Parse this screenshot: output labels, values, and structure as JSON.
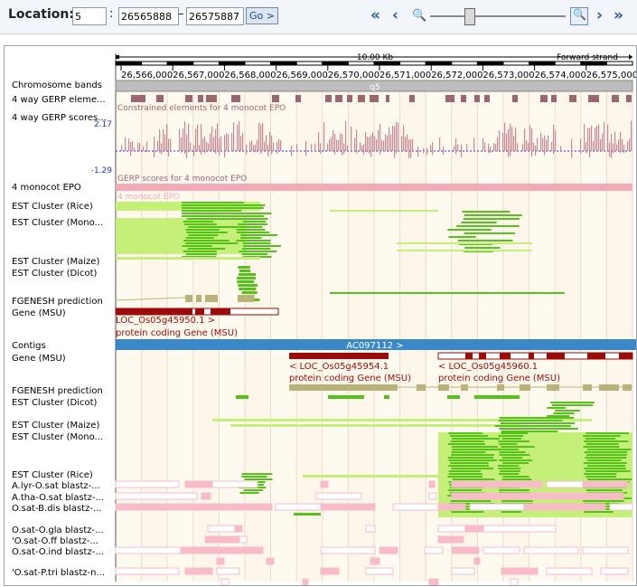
{
  "toolbar": {
    "location_label": "Location:",
    "chromosome": "5",
    "start": "26565888",
    "end": "26575887",
    "colon": ":",
    "dash": "–",
    "go_label": "Go >",
    "nav_far_left": "«",
    "nav_left": "‹",
    "nav_right": "›",
    "nav_far_right": "»"
  },
  "scale": {
    "length_label": "10.00 Kb",
    "strand_label": "Forward strand",
    "ticks": [
      "26,566,000",
      "26,567,000",
      "26,568,000",
      "26,569,000",
      "26,570,000",
      "26,571,000",
      "26,572,000",
      "26,573,000",
      "26,574,000",
      "26,575,000"
    ]
  },
  "band": "q5",
  "gerp": {
    "max": "2.17",
    "min": "-1.29",
    "elements_caption": "Constrained elements for 4 monocot EPO",
    "scores_caption": "GERP scores for 4 monocot EPO",
    "epo_caption": "4 monocot EPO"
  },
  "contig": "AC097112 >",
  "genes": {
    "top": {
      "name": "LOC_Os05g45950.1 >",
      "biotype": "protein coding Gene (MSU)"
    },
    "g2": {
      "name": "< LOC_Os05g45954.1",
      "biotype": "protein coding Gene (MSU)"
    },
    "g3": {
      "name": "< LOC_Os05g45960.1",
      "biotype": "protein coding Gene (MSU)"
    }
  },
  "tracks": [
    {
      "label": "Chromosome bands",
      "row": 38
    },
    {
      "label": "4 way GERP eleme...",
      "row": 54
    },
    {
      "label": "4 way GERP scores...",
      "row": 74
    },
    {
      "label": "4 monocot EPO",
      "row": 151
    },
    {
      "label": "EST Cluster (Rice)",
      "row": 172
    },
    {
      "label": "EST Cluster (Mono...",
      "row": 190
    },
    {
      "label": "EST Cluster (Maize)",
      "row": 233
    },
    {
      "label": "EST Cluster (Dicot)",
      "row": 246
    },
    {
      "label": "FGENESH prediction",
      "row": 277
    },
    {
      "label": "Gene (MSU)",
      "row": 290
    },
    {
      "label": "Contigs",
      "row": 326
    },
    {
      "label": "Gene (MSU)",
      "row": 340
    },
    {
      "label": "FGENESH prediction",
      "row": 376
    },
    {
      "label": "EST Cluster (Dicot)",
      "row": 389
    },
    {
      "label": "EST Cluster (Maize)",
      "row": 414
    },
    {
      "label": "EST Cluster (Mono...",
      "row": 427
    },
    {
      "label": "EST Cluster (Rice)",
      "row": 469
    },
    {
      "label": "A.lyr-O.sat blastz-...",
      "row": 481
    },
    {
      "label": "A.tha-O.sat blastz-...",
      "row": 494
    },
    {
      "label": "O.sat-B.dis blastz-...",
      "row": 506
    },
    {
      "label": "O.sat-O.gla blastz-...",
      "row": 530
    },
    {
      "label": "'O.sat-O.ff blastz-...",
      "row": 542
    },
    {
      "label": "O.sat-O.ind blastz-...",
      "row": 554
    },
    {
      "label": "'O.sat-P.tri blastz-n...",
      "row": 577
    }
  ],
  "colors": {
    "est": "#c4f07a",
    "est_dark": "#55c21a",
    "gene": "#9c0a0a",
    "fgenesh": "#b9b27a",
    "gerp": "#c48a97",
    "gerp_element": "#9b6670",
    "epo": "#f2aab7",
    "blastz": "#f7bcc8",
    "contig": "#3a87c9",
    "band": "#bdbdbd"
  }
}
